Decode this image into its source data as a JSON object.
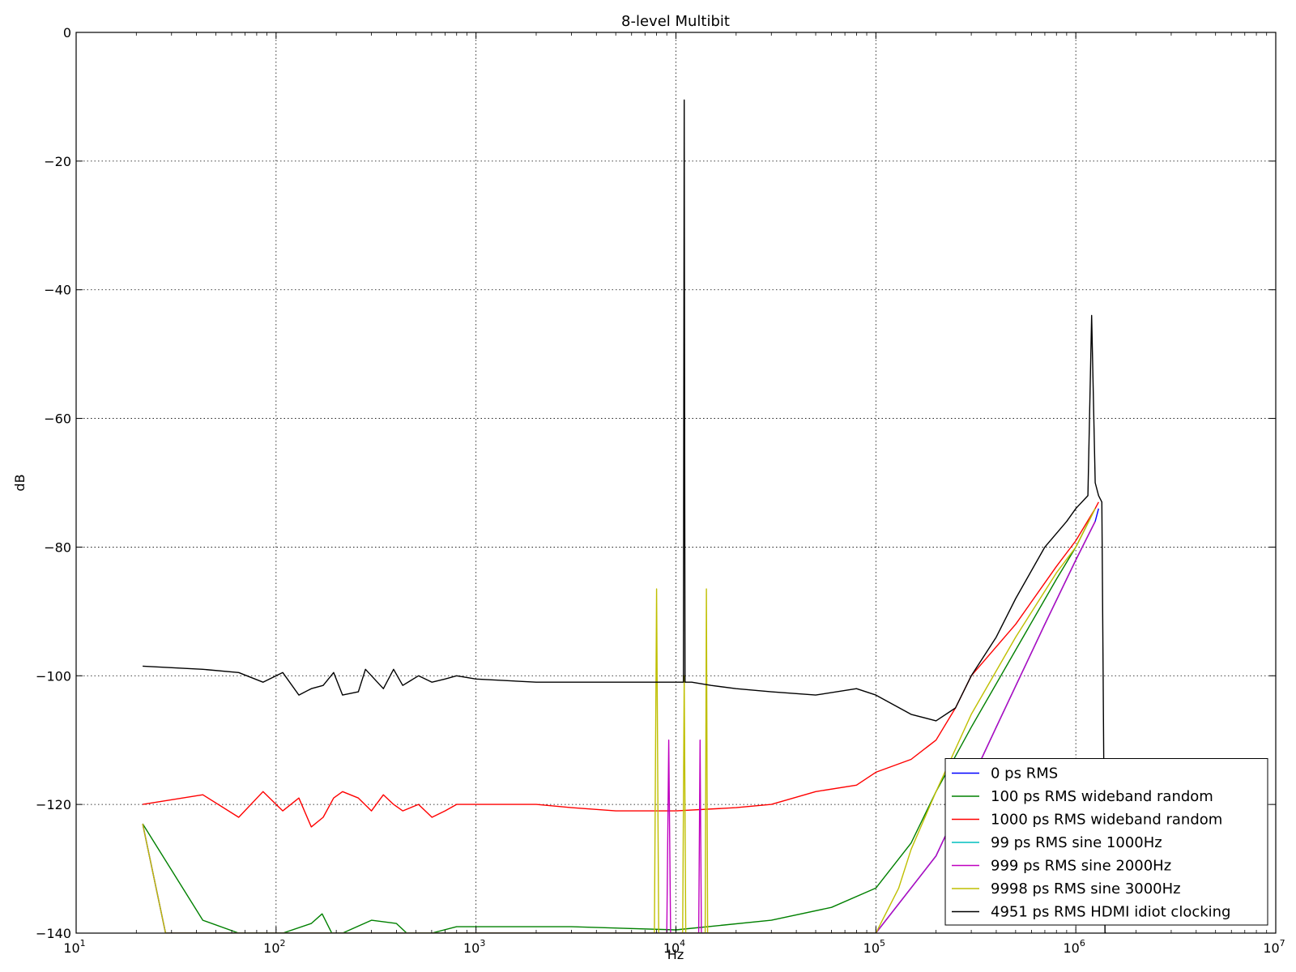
{
  "chart_data": {
    "type": "line",
    "title": "8-level Multibit",
    "xlabel": "Hz",
    "ylabel": "dB",
    "xscale": "log",
    "xlim": [
      10,
      10000000
    ],
    "ylim": [
      -140,
      0
    ],
    "grid": true,
    "legend_position": "lower-right",
    "x_ticks": [
      {
        "value": 10,
        "base": "10",
        "exp": "1"
      },
      {
        "value": 100,
        "base": "10",
        "exp": "2"
      },
      {
        "value": 1000,
        "base": "10",
        "exp": "3"
      },
      {
        "value": 10000,
        "base": "10",
        "exp": "4"
      },
      {
        "value": 100000,
        "base": "10",
        "exp": "5"
      },
      {
        "value": 1000000,
        "base": "10",
        "exp": "6"
      },
      {
        "value": 10000000,
        "base": "10",
        "exp": "7"
      }
    ],
    "y_ticks": [
      {
        "value": 0,
        "label": "0"
      },
      {
        "value": -20,
        "label": "−20"
      },
      {
        "value": -40,
        "label": "−40"
      },
      {
        "value": -60,
        "label": "−60"
      },
      {
        "value": -80,
        "label": "−80"
      },
      {
        "value": -100,
        "label": "−100"
      },
      {
        "value": -120,
        "label": "−120"
      },
      {
        "value": -140,
        "label": "−140"
      }
    ],
    "series": [
      {
        "name": "0 ps RMS",
        "color": "#0000ff",
        "x": [
          21.5,
          28,
          100000,
          200000,
          400000,
          700000,
          1000000,
          1250000,
          1300000
        ],
        "y": [
          -123,
          -140,
          -140,
          -128,
          -108,
          -92,
          -82,
          -76,
          -74
        ]
      },
      {
        "name": "100 ps RMS wideband random",
        "color": "#008000",
        "x": [
          21.5,
          43,
          65,
          86,
          108,
          150,
          170,
          190,
          215,
          300,
          400,
          450,
          600,
          800,
          1000,
          3000,
          10000,
          30000,
          60000,
          100000,
          150000,
          200000,
          300000,
          500000,
          800000,
          1000000,
          1250000
        ],
        "y": [
          -123,
          -138,
          -140,
          -140,
          -140,
          -138.5,
          -137,
          -140,
          -140,
          -138,
          -138.5,
          -140,
          -140,
          -139,
          -139,
          -139,
          -139.5,
          -138,
          -136,
          -133,
          -126,
          -118,
          -108,
          -96,
          -85,
          -80,
          -74
        ]
      },
      {
        "name": "1000 ps RMS wideband random",
        "color": "#ff0000",
        "x": [
          21.5,
          43,
          65,
          86,
          108,
          130,
          150,
          172,
          194,
          215,
          258,
          300,
          344,
          387,
          430,
          516,
          602,
          700,
          800,
          1000,
          2000,
          3000,
          5000,
          10000,
          20000,
          30000,
          50000,
          80000,
          100000,
          150000,
          200000,
          250000,
          300000,
          500000,
          800000,
          1000000,
          1250000,
          1300000
        ],
        "y": [
          -120,
          -118.5,
          -122,
          -118,
          -121,
          -119,
          -123.5,
          -122,
          -119,
          -118,
          -119,
          -121,
          -118.5,
          -120,
          -121,
          -120,
          -122,
          -121,
          -120,
          -120,
          -120,
          -120.5,
          -121,
          -121,
          -120.5,
          -120,
          -118,
          -117,
          -115,
          -113,
          -110,
          -105,
          -100,
          -92,
          -83,
          -79,
          -74,
          -73
        ]
      },
      {
        "name": "99 ps RMS sine 1000Hz",
        "color": "#00bfbf",
        "x": [
          21.5,
          28,
          100000,
          200000,
          400000,
          700000,
          1000000,
          1250000
        ],
        "y": [
          -123,
          -140,
          -140,
          -128,
          -108,
          -92,
          -82,
          -76
        ]
      },
      {
        "name": "999 ps RMS sine 2000Hz",
        "color": "#bf00bf",
        "x": [
          21.5,
          28,
          9000,
          9200,
          9400,
          13000,
          13200,
          13400,
          100000,
          200000,
          400000,
          700000,
          1000000,
          1250000
        ],
        "y": [
          -123,
          -140,
          -140,
          -110,
          -140,
          -140,
          -110,
          -140,
          -140,
          -128,
          -108,
          -92,
          -82,
          -76
        ]
      },
      {
        "name": "9998 ps RMS sine 3000Hz",
        "color": "#bfbf00",
        "x": [
          21.5,
          28,
          7800,
          8000,
          8200,
          10800,
          11000,
          11200,
          14000,
          14200,
          14400,
          100000,
          130000,
          150000,
          200000,
          300000,
          500000,
          800000,
          1000000,
          1250000
        ],
        "y": [
          -123,
          -140,
          -140,
          -86.5,
          -140,
          -140,
          -100,
          -140,
          -140,
          -86.5,
          -140,
          -140,
          -133,
          -127,
          -118,
          -106,
          -94,
          -84,
          -80,
          -74
        ]
      },
      {
        "name": "4951 ps RMS HDMI idiot clocking",
        "color": "#000000",
        "x": [
          21.5,
          43,
          65,
          86,
          108,
          130,
          150,
          172,
          194,
          215,
          258,
          280,
          300,
          344,
          387,
          430,
          516,
          602,
          700,
          800,
          1000,
          2000,
          3000,
          5000,
          10000,
          10900,
          11000,
          11100,
          12000,
          15000,
          20000,
          30000,
          50000,
          80000,
          100000,
          150000,
          200000,
          250000,
          300000,
          400000,
          500000,
          700000,
          900000,
          1000000,
          1150000,
          1200000,
          1250000,
          1300000,
          1350000,
          1370000,
          1400000,
          1420000
        ],
        "y": [
          -98.5,
          -99,
          -99.5,
          -101,
          -99.5,
          -103,
          -102,
          -101.5,
          -99.5,
          -103,
          -102.5,
          -99,
          -100,
          -102,
          -99,
          -101.5,
          -100,
          -101,
          -100.5,
          -100,
          -100.5,
          -101,
          -101,
          -101,
          -101,
          -101,
          -10.5,
          -101,
          -101,
          -101.5,
          -102,
          -102.5,
          -103,
          -102,
          -103,
          -106,
          -107,
          -105,
          -100,
          -94,
          -88,
          -80,
          -76,
          -74,
          -72,
          -44,
          -70,
          -72,
          -73,
          -100,
          -140,
          -140
        ]
      }
    ]
  }
}
